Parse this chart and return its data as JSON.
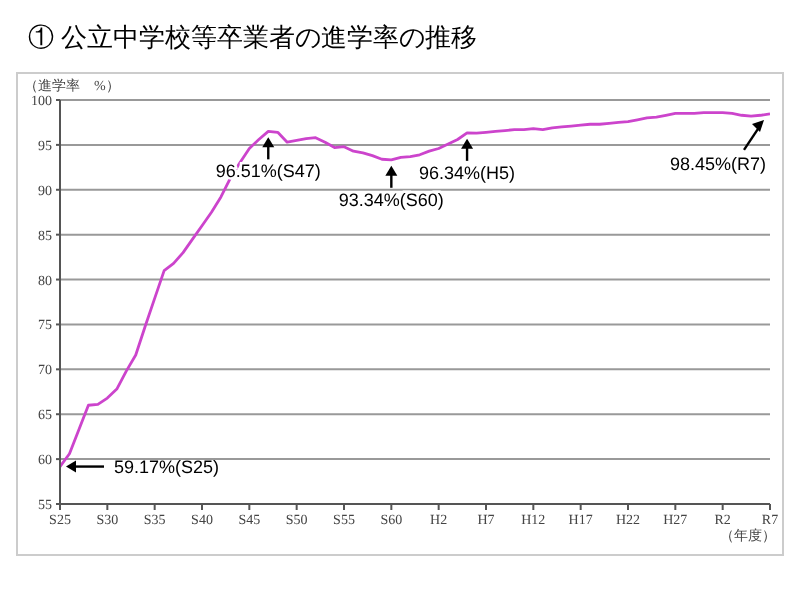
{
  "chart_data": {
    "type": "line",
    "title": "① 公立中学校等卒業者の進学率の推移",
    "ylabel": "（進学率　%）",
    "xlabel": "（年度）",
    "categories": [
      "S25",
      null,
      null,
      null,
      null,
      "S30",
      null,
      null,
      null,
      null,
      "S35",
      null,
      null,
      null,
      null,
      "S40",
      null,
      null,
      null,
      null,
      "S45",
      null,
      null,
      null,
      null,
      "S50",
      null,
      null,
      null,
      null,
      "S55",
      null,
      null,
      null,
      null,
      "S60",
      null,
      null,
      null,
      null,
      "H2",
      null,
      null,
      null,
      null,
      "H7",
      null,
      null,
      null,
      null,
      "H12",
      null,
      null,
      null,
      null,
      "H17",
      null,
      null,
      null,
      null,
      "H22",
      null,
      null,
      null,
      null,
      "H27",
      null,
      null,
      null,
      null,
      "R2",
      null,
      null,
      null,
      null,
      "R7"
    ],
    "series": [
      {
        "color": "#cc44cc",
        "values": [
          59.17,
          60.6,
          63.3,
          66.0,
          66.1,
          66.8,
          67.8,
          69.8,
          71.6,
          74.8,
          77.9,
          81.0,
          81.8,
          83.0,
          84.5,
          86.0,
          87.5,
          89.2,
          91.3,
          93.0,
          94.6,
          95.6,
          96.51,
          96.4,
          95.3,
          95.5,
          95.7,
          95.8,
          95.3,
          94.7,
          94.8,
          94.3,
          94.1,
          93.8,
          93.4,
          93.34,
          93.6,
          93.7,
          93.9,
          94.3,
          94.6,
          95.1,
          95.6,
          96.34,
          96.3,
          96.4,
          96.5,
          96.6,
          96.7,
          96.7,
          96.8,
          96.7,
          96.9,
          97.0,
          97.1,
          97.2,
          97.3,
          97.3,
          97.4,
          97.5,
          97.6,
          97.8,
          98.0,
          98.1,
          98.3,
          98.5,
          98.5,
          98.5,
          98.6,
          98.6,
          98.6,
          98.5,
          98.3,
          98.2,
          98.3,
          98.45
        ]
      }
    ],
    "ylim": [
      55,
      100
    ],
    "yticks": [
      55,
      60,
      65,
      70,
      75,
      80,
      85,
      90,
      95,
      100
    ],
    "grid": "y",
    "legend": false,
    "marker": "none",
    "line_style": "solid",
    "annotations": [
      {
        "text": "59.17%(S25)",
        "x": "S25",
        "y": 59.17
      },
      {
        "text": "96.51%(S47)",
        "y": 96.51
      },
      {
        "text": "93.34%(S60)",
        "y": 93.34
      },
      {
        "text": "96.34%(H5)",
        "y": 96.34
      },
      {
        "text": "98.45%(R7)",
        "x": "R7",
        "y": 98.45
      }
    ]
  }
}
